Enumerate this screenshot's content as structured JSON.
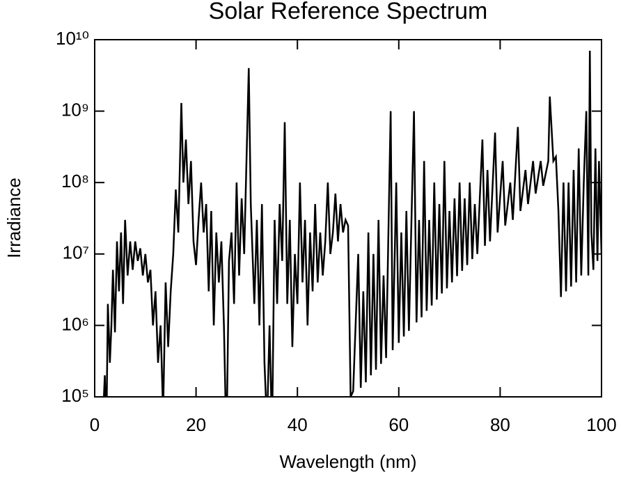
{
  "chart_data": {
    "type": "line",
    "title": "Solar Reference Spectrum",
    "x_label": "Wavelength (nm)",
    "y_label": "Irradiance",
    "log_y": true,
    "grid": false,
    "color": "#000000",
    "xlim": [
      0,
      100
    ],
    "xticks": [
      0,
      20,
      40,
      60,
      80,
      100
    ],
    "ylim": [
      100000,
      10000000000
    ],
    "yticks": [
      {
        "value": 100000,
        "label": "10⁵"
      },
      {
        "value": 1000000,
        "label": "10⁶"
      },
      {
        "value": 10000000,
        "label": "10⁷"
      },
      {
        "value": 100000000,
        "label": "10⁸"
      },
      {
        "value": 1000000000,
        "label": "10⁹"
      },
      {
        "value": 10000000000,
        "label": "10¹⁰"
      }
    ],
    "x": [
      1.5,
      2,
      2.3,
      2.6,
      3,
      3.3,
      3.6,
      4,
      4.4,
      4.8,
      5.2,
      5.6,
      6,
      6.5,
      7,
      7.5,
      8,
      8.5,
      9,
      9.5,
      10,
      10.5,
      11,
      11.5,
      12,
      12.5,
      13,
      13.5,
      14,
      14.5,
      15,
      15.5,
      16,
      16.5,
      17.1,
      17.5,
      18,
      18.5,
      19,
      19.5,
      20,
      20.5,
      21,
      21.5,
      22,
      22.5,
      23,
      23.5,
      24,
      24.5,
      25,
      25.5,
      26,
      26.5,
      27,
      27.5,
      28,
      28.5,
      29,
      29.5,
      30.4,
      30.8,
      31.5,
      32,
      32.5,
      33,
      33.5,
      34,
      34.5,
      35,
      35.5,
      36,
      36.5,
      37,
      37.5,
      38,
      38.5,
      39,
      39.5,
      40,
      40.5,
      41,
      41.5,
      42,
      42.5,
      43,
      43.5,
      44,
      44.5,
      45,
      45.5,
      46,
      46.5,
      47,
      47.5,
      48,
      48.5,
      49,
      49.5,
      50,
      50.5,
      51,
      52,
      52.5,
      53,
      53.5,
      54,
      54.5,
      55,
      55.5,
      56,
      56.5,
      57,
      57.5,
      58.4,
      58.8,
      59.5,
      60,
      60.5,
      61,
      61.5,
      62,
      63,
      63.5,
      64,
      64.5,
      65,
      65.5,
      66,
      66.5,
      67,
      67.5,
      68,
      68.5,
      69,
      69.5,
      70,
      70.5,
      71,
      71.5,
      72,
      72.5,
      73,
      73.5,
      74,
      74.5,
      75,
      75.5,
      76.5,
      77,
      77.5,
      78,
      79,
      79.5,
      80.5,
      81,
      82,
      82.5,
      83.5,
      84,
      85,
      85.5,
      86.5,
      87,
      88,
      88.5,
      89.5,
      89.8,
      90.5,
      91,
      91.5,
      92,
      92.5,
      93,
      93.5,
      94,
      94.5,
      95,
      95.5,
      96,
      96.5,
      97,
      97.4,
      97.7,
      98,
      98.4,
      98.8,
      99.2,
      99.5,
      100
    ],
    "values": [
      30000,
      200000,
      30000,
      2000000,
      300000,
      1000000,
      6000000,
      800000,
      15000000,
      3000000,
      20000000,
      2000000,
      30000000,
      5000000,
      15000000,
      6000000,
      15000000,
      8000000,
      12000000,
      5000000,
      10000000,
      4000000,
      6000000,
      1000000,
      3000000,
      300000,
      1000000,
      60000,
      4000000,
      500000,
      3000000,
      10000000,
      80000000,
      20000000,
      1300000000,
      100000000,
      400000000,
      50000000,
      200000000,
      15000000,
      7000000,
      30000000,
      100000000,
      20000000,
      50000000,
      3000000,
      40000000,
      1000000,
      20000000,
      4000000,
      15000000,
      1000000,
      20000,
      8000000,
      20000000,
      2000000,
      100000000,
      5000000,
      60000000,
      10000000,
      4000000000,
      50000000,
      2000000,
      30000000,
      1000000,
      50000000,
      300000,
      40000,
      1000000,
      30000,
      30000000,
      2000000,
      50000000,
      8000000,
      700000000,
      2000000,
      30000000,
      500000,
      10000000,
      2000000,
      100000000,
      4000000,
      30000000,
      1000000,
      20000000,
      3000000,
      50000000,
      4000000,
      20000000,
      5000000,
      15000000,
      100000000,
      10000000,
      20000000,
      70000000,
      15000000,
      50000000,
      20000000,
      30000000,
      25000000,
      100000,
      120000,
      10000000,
      134000,
      3000000,
      160000,
      20000000,
      200000,
      10000000,
      240000,
      30000000,
      290000,
      5000000,
      350000,
      1000000000,
      450000,
      100000000,
      570000,
      20000000,
      700000,
      40000000,
      840000,
      1000000000,
      1100000,
      30000000,
      1300000,
      200000000,
      1600000,
      30000000,
      1900000,
      100000000,
      2300000,
      50000000,
      2800000,
      200000000,
      3300000,
      40000000,
      4000000,
      60000000,
      4900000,
      100000000,
      5800000,
      60000000,
      7000000,
      100000000,
      8500000,
      50000000,
      10000000,
      400000000,
      13000000,
      150000000,
      15000000,
      500000000,
      20000000,
      200000000,
      25000000,
      100000000,
      30000000,
      600000000,
      40000000,
      150000000,
      50000000,
      200000000,
      70000000,
      200000000,
      90000000,
      200000000,
      1600000000,
      200000000,
      230000000,
      40000000,
      2500000,
      100000000,
      3000000,
      100000000,
      3500000,
      150000000,
      4000000,
      300000000,
      5000000,
      100000000,
      1000000000,
      5000000,
      7000000000,
      20000000,
      6000000,
      300000000,
      8000000,
      200000000,
      10000000
    ]
  }
}
